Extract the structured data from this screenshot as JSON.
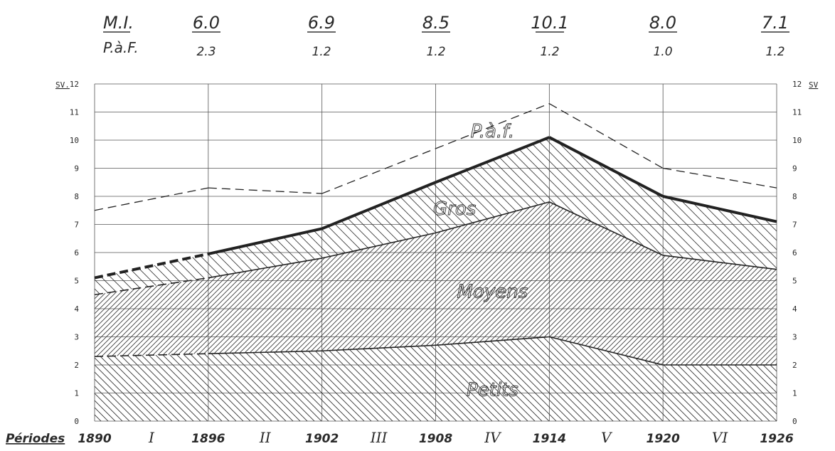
{
  "chart_data": {
    "type": "area",
    "header": {
      "mi_label": "M.I.",
      "paf_label": "P.à.F.",
      "mi_values": [
        "6.0",
        "6.9",
        "8.5",
        "10.1",
        "8.0",
        "7.1"
      ],
      "paf_values": [
        "2.3",
        "1.2",
        "1.2",
        "1.2",
        "1.0",
        "1.2"
      ]
    },
    "y_unit_label": "SV.",
    "y_unit_label_right": "SV",
    "ylim": [
      0,
      12
    ],
    "y_ticks": [
      "0",
      "1",
      "2",
      "3",
      "4",
      "5",
      "6",
      "7",
      "8",
      "9",
      "10",
      "11",
      "12"
    ],
    "x": [
      1890,
      1896,
      1902,
      1908,
      1914,
      1920,
      1926
    ],
    "x_labels": [
      "1890",
      "1896",
      "1902",
      "1908",
      "1914",
      "1920",
      "1926"
    ],
    "x_prefix": "Périodes",
    "periods": [
      "I",
      "II",
      "III",
      "IV",
      "V",
      "VI"
    ],
    "grid": true,
    "series": [
      {
        "name": "Petits",
        "values": [
          2.3,
          2.4,
          2.5,
          2.7,
          3.0,
          2.0,
          2.0
        ]
      },
      {
        "name": "Moyens",
        "values": [
          4.5,
          5.1,
          5.8,
          6.7,
          7.8,
          5.9,
          5.4
        ]
      },
      {
        "name": "Gros",
        "values": [
          5.1,
          5.95,
          6.85,
          8.5,
          10.1,
          8.0,
          7.1
        ]
      },
      {
        "name": "P.à.f.",
        "values": [
          7.5,
          8.3,
          8.1,
          9.7,
          11.3,
          9.0,
          8.3
        ]
      }
    ]
  }
}
